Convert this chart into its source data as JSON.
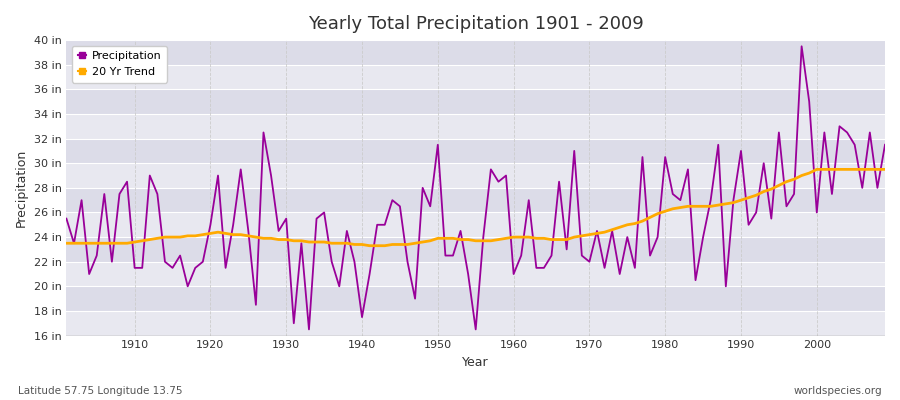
{
  "title": "Yearly Total Precipitation 1901 - 2009",
  "xlabel": "Year",
  "ylabel": "Precipitation",
  "subtitle_left": "Latitude 57.75 Longitude 13.75",
  "subtitle_right": "worldspecies.org",
  "precip_color": "#990099",
  "trend_color": "#FFAA00",
  "bg_color": "#FFFFFF",
  "plot_bg_color": "#E8E8F0",
  "grid_color": "#FFFFFF",
  "alt_band_color": "#DCDCE8",
  "ylim": [
    16,
    40
  ],
  "yticks": [
    16,
    18,
    20,
    22,
    24,
    26,
    28,
    30,
    32,
    34,
    36,
    38,
    40
  ],
  "xlim": [
    1901,
    2009
  ],
  "xticks": [
    1910,
    1920,
    1930,
    1940,
    1950,
    1960,
    1970,
    1980,
    1990,
    2000
  ],
  "years": [
    1901,
    1902,
    1903,
    1904,
    1905,
    1906,
    1907,
    1908,
    1909,
    1910,
    1911,
    1912,
    1913,
    1914,
    1915,
    1916,
    1917,
    1918,
    1919,
    1920,
    1921,
    1922,
    1923,
    1924,
    1925,
    1926,
    1927,
    1928,
    1929,
    1930,
    1931,
    1932,
    1933,
    1934,
    1935,
    1936,
    1937,
    1938,
    1939,
    1940,
    1941,
    1942,
    1943,
    1944,
    1945,
    1946,
    1947,
    1948,
    1949,
    1950,
    1951,
    1952,
    1953,
    1954,
    1955,
    1956,
    1957,
    1958,
    1959,
    1960,
    1961,
    1962,
    1963,
    1964,
    1965,
    1966,
    1967,
    1968,
    1969,
    1970,
    1971,
    1972,
    1973,
    1974,
    1975,
    1976,
    1977,
    1978,
    1979,
    1980,
    1981,
    1982,
    1983,
    1984,
    1985,
    1986,
    1987,
    1988,
    1989,
    1990,
    1991,
    1992,
    1993,
    1994,
    1995,
    1996,
    1997,
    1998,
    1999,
    2000,
    2001,
    2002,
    2003,
    2004,
    2005,
    2006,
    2007,
    2008,
    2009
  ],
  "precip": [
    25.5,
    23.5,
    27.0,
    21.0,
    22.5,
    27.5,
    22.0,
    27.5,
    28.5,
    21.5,
    21.5,
    29.0,
    27.5,
    22.0,
    21.5,
    22.5,
    20.0,
    21.5,
    22.0,
    25.0,
    29.0,
    21.5,
    25.0,
    29.5,
    24.5,
    18.5,
    32.5,
    29.0,
    24.5,
    25.5,
    17.0,
    23.5,
    16.5,
    25.5,
    26.0,
    22.0,
    20.0,
    24.5,
    22.0,
    17.5,
    21.0,
    25.0,
    25.0,
    27.0,
    26.5,
    22.0,
    19.0,
    28.0,
    26.5,
    31.5,
    22.5,
    22.5,
    24.5,
    21.0,
    16.5,
    24.0,
    29.5,
    28.5,
    29.0,
    21.0,
    22.5,
    27.0,
    21.5,
    21.5,
    22.5,
    28.5,
    23.0,
    31.0,
    22.5,
    22.0,
    24.5,
    21.5,
    24.5,
    21.0,
    24.0,
    21.5,
    30.5,
    22.5,
    24.0,
    30.5,
    27.5,
    27.0,
    29.5,
    20.5,
    24.0,
    27.0,
    31.5,
    20.0,
    27.0,
    31.0,
    25.0,
    26.0,
    30.0,
    25.5,
    32.5,
    26.5,
    27.5,
    39.5,
    35.0,
    26.0,
    32.5,
    27.5,
    33.0,
    32.5,
    31.5,
    28.0,
    32.5,
    28.0,
    31.5
  ],
  "trend": [
    23.5,
    23.5,
    23.5,
    23.5,
    23.5,
    23.5,
    23.5,
    23.5,
    23.5,
    23.6,
    23.7,
    23.8,
    23.9,
    24.0,
    24.0,
    24.0,
    24.1,
    24.1,
    24.2,
    24.3,
    24.4,
    24.3,
    24.2,
    24.2,
    24.1,
    24.0,
    23.9,
    23.9,
    23.8,
    23.8,
    23.7,
    23.7,
    23.6,
    23.6,
    23.6,
    23.5,
    23.5,
    23.5,
    23.4,
    23.4,
    23.3,
    23.3,
    23.3,
    23.4,
    23.4,
    23.4,
    23.5,
    23.6,
    23.7,
    23.9,
    23.9,
    23.9,
    23.8,
    23.8,
    23.7,
    23.7,
    23.7,
    23.8,
    23.9,
    24.0,
    24.0,
    24.0,
    23.9,
    23.9,
    23.8,
    23.8,
    23.8,
    24.0,
    24.1,
    24.2,
    24.3,
    24.4,
    24.6,
    24.8,
    25.0,
    25.1,
    25.3,
    25.6,
    25.9,
    26.1,
    26.3,
    26.4,
    26.5,
    26.5,
    26.5,
    26.5,
    26.6,
    26.7,
    26.8,
    27.0,
    27.2,
    27.4,
    27.7,
    27.9,
    28.2,
    28.5,
    28.7,
    29.0,
    29.2,
    29.5,
    29.5,
    29.5,
    29.5,
    29.5,
    29.5,
    29.5,
    29.5,
    29.5,
    29.5
  ]
}
